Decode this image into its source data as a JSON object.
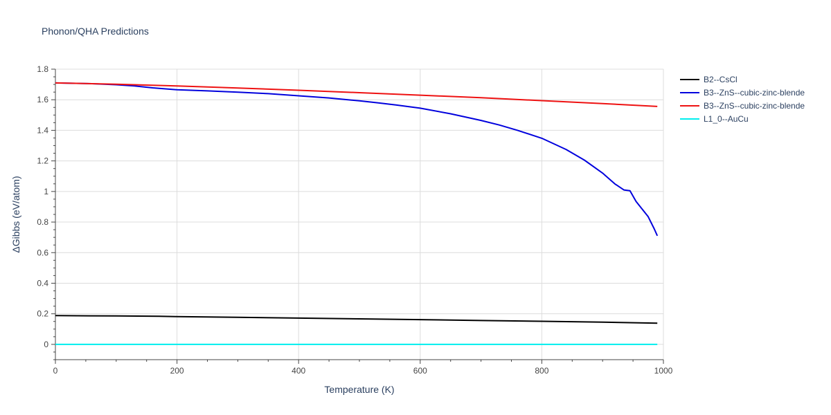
{
  "chart_data": {
    "type": "line",
    "title": "Phonon/QHA Predictions",
    "xlabel": "Temperature (K)",
    "ylabel": "ΔGibbs (eV/atom)",
    "xlim": [
      0,
      1000
    ],
    "ylim": [
      -0.1,
      1.8
    ],
    "xticks": [
      0,
      200,
      400,
      600,
      800,
      1000
    ],
    "yticks": [
      0,
      0.2,
      0.4,
      0.6,
      0.8,
      1,
      1.2,
      1.4,
      1.6,
      1.8
    ],
    "ytick_labels": [
      "0",
      "0.2",
      "0.4",
      "0.6",
      "0.8",
      "1",
      "1.2",
      "1.4",
      "1.6",
      "1.8"
    ],
    "grid": true,
    "legend_position": "top-right",
    "series": [
      {
        "name": "B2--CsCl",
        "color": "#000000",
        "x": [
          0,
          100,
          170,
          200,
          300,
          400,
          500,
          600,
          700,
          800,
          900,
          990
        ],
        "y": [
          0.188,
          0.186,
          0.184,
          0.182,
          0.177,
          0.172,
          0.167,
          0.162,
          0.156,
          0.151,
          0.145,
          0.139
        ]
      },
      {
        "name": "B3--ZnS--cubic-zinc-blende",
        "color": "#0000dd",
        "x": [
          0,
          60,
          100,
          130,
          160,
          200,
          250,
          300,
          350,
          400,
          450,
          500,
          530,
          560,
          600,
          650,
          700,
          730,
          760,
          800,
          840,
          870,
          900,
          920,
          935,
          945,
          955,
          975,
          985,
          990
        ],
        "y": [
          1.71,
          1.705,
          1.698,
          1.69,
          1.678,
          1.665,
          1.658,
          1.65,
          1.64,
          1.626,
          1.612,
          1.593,
          1.58,
          1.566,
          1.545,
          1.508,
          1.465,
          1.435,
          1.4,
          1.348,
          1.275,
          1.205,
          1.12,
          1.05,
          1.01,
          1.005,
          0.935,
          0.835,
          0.755,
          0.71
        ]
      },
      {
        "name": "B3--ZnS--cubic-zinc-blende",
        "color": "#ee1111",
        "x": [
          0,
          100,
          200,
          300,
          400,
          500,
          600,
          700,
          800,
          900,
          990
        ],
        "y": [
          1.71,
          1.702,
          1.69,
          1.677,
          1.662,
          1.646,
          1.63,
          1.613,
          1.594,
          1.575,
          1.556
        ]
      },
      {
        "name": "L1_0--AuCu",
        "color": "#00eeee",
        "x": [
          0,
          990
        ],
        "y": [
          0,
          0
        ]
      }
    ]
  }
}
